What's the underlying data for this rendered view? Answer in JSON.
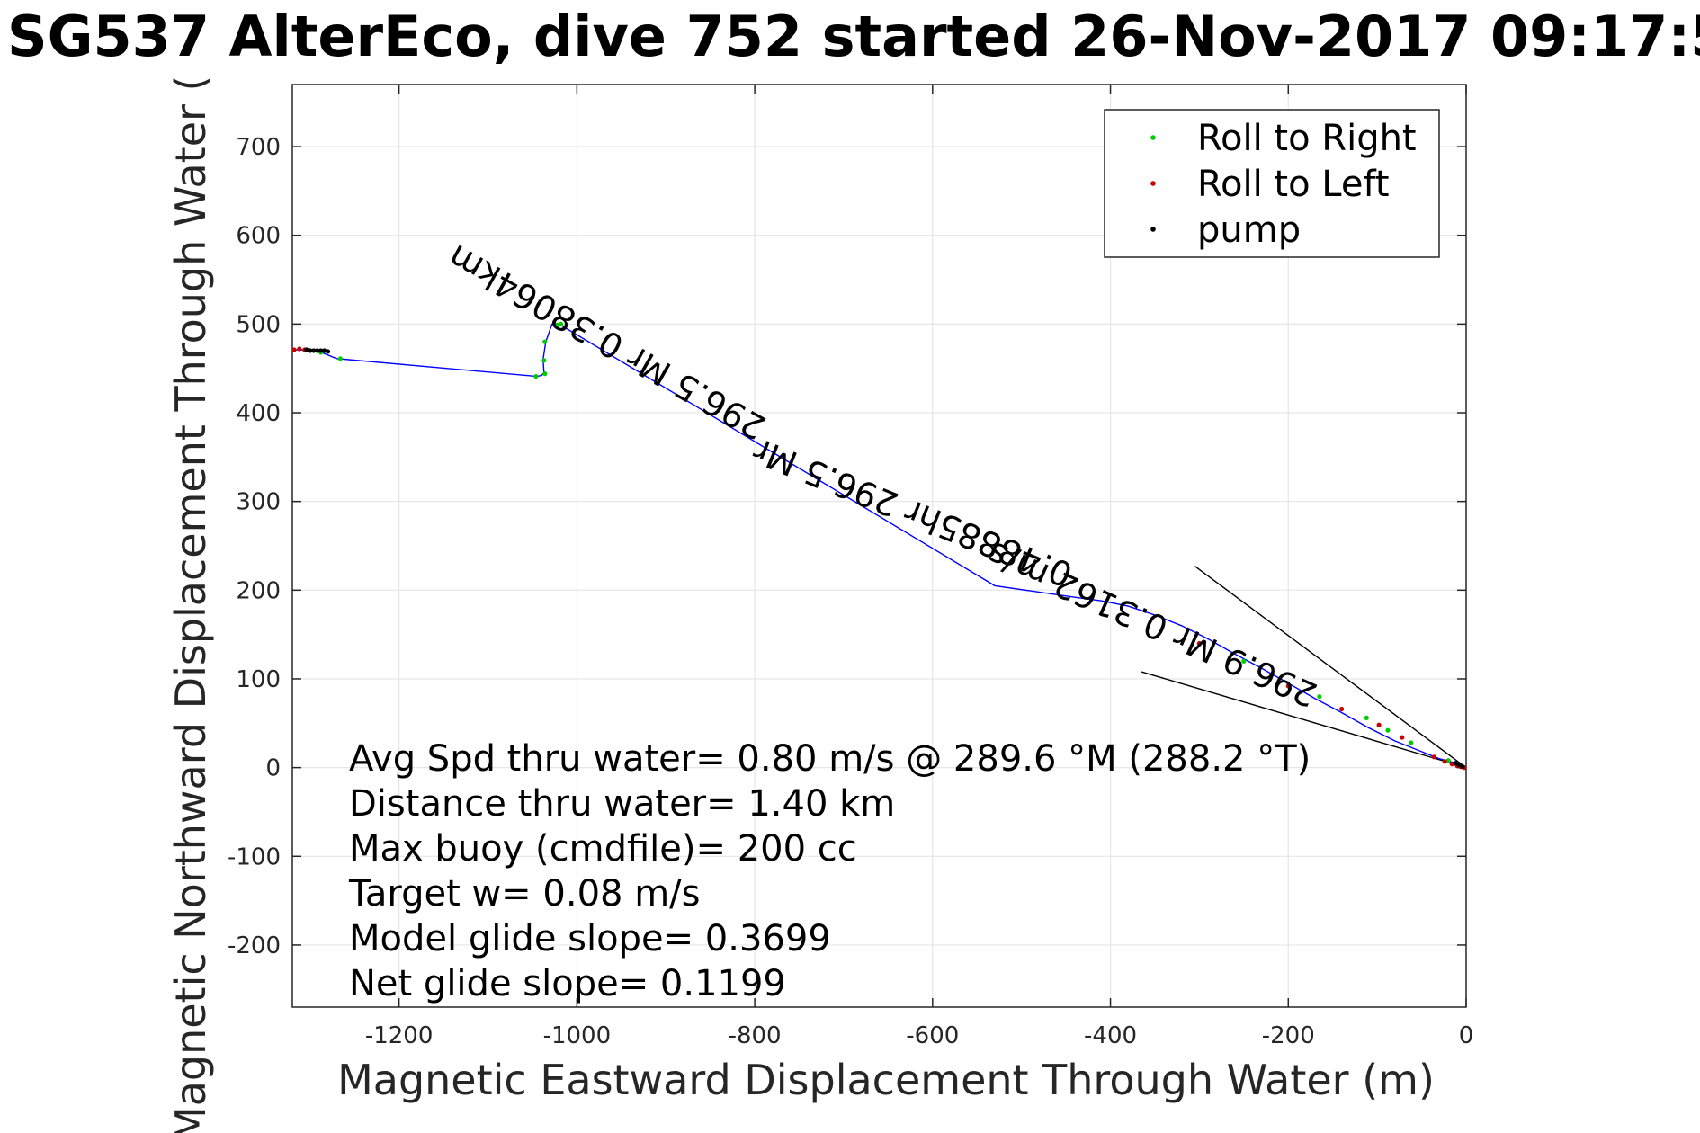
{
  "chart_data": {
    "type": "line",
    "title": "SG537 AlterEco, dive 752 started 26-Nov-2017 09:17:5",
    "xlabel": "Magnetic Eastward Displacement Through Water (m)",
    "ylabel": "Magnetic Northward Displacement Through Water (",
    "xlim": [
      -1320,
      0
    ],
    "ylim": [
      -270,
      770
    ],
    "xticks": [
      -1200,
      -1000,
      -800,
      -600,
      -400,
      -200,
      0
    ],
    "yticks": [
      -200,
      -100,
      0,
      100,
      200,
      300,
      400,
      500,
      600,
      700
    ],
    "grid": true,
    "legend": {
      "position": "top-right",
      "entries": [
        {
          "label": "Roll to Right",
          "color": "#00cc00"
        },
        {
          "label": "Roll to Left",
          "color": "#cc0000"
        },
        {
          "label": "pump",
          "color": "#000000"
        }
      ]
    },
    "track": {
      "color": "#0000ff",
      "x": [
        0,
        -5,
        -15,
        -30,
        -50,
        -80,
        -110,
        -140,
        -170,
        -200,
        -230,
        -260,
        -290,
        -320,
        -350,
        -380,
        -410,
        -440,
        -530,
        -1020,
        -1028,
        -1035,
        -1038,
        -1037,
        -1040,
        -1045,
        -1270,
        -1290,
        -1300,
        -1310,
        -1320
      ],
      "y": [
        0,
        3,
        6,
        10,
        18,
        30,
        45,
        62,
        78,
        95,
        112,
        128,
        145,
        160,
        172,
        182,
        188,
        192,
        205,
        500,
        500,
        480,
        460,
        445,
        442,
        441,
        461,
        469,
        470,
        471,
        471
      ]
    },
    "roll_right": {
      "x": [
        -1018,
        -1022,
        -1036,
        -1037,
        -1036,
        -1046,
        -1266,
        -1288,
        -1300,
        -62,
        -88,
        -112,
        -165,
        -250,
        -20
      ],
      "y": [
        500,
        499,
        480,
        459,
        444,
        441,
        461,
        468,
        470,
        28,
        42,
        56,
        80,
        120,
        8
      ]
    },
    "roll_left": {
      "x": [
        -1318,
        -1312,
        -1306,
        -2,
        -6,
        -10,
        -16,
        -24,
        -36,
        -72,
        -98,
        -140,
        -200,
        -300
      ],
      "y": [
        471,
        472,
        471,
        0,
        1,
        2,
        4,
        7,
        12,
        34,
        48,
        66,
        92,
        140
      ]
    },
    "pump": {
      "x": [
        -1280,
        -1284,
        -1288,
        -1292,
        -1296,
        -1300,
        -1304,
        -4,
        -8,
        -12
      ],
      "y": [
        469,
        470,
        470,
        470,
        470,
        470,
        471,
        1,
        3,
        5
      ]
    },
    "guide_lines": [
      {
        "x": [
          0,
          -305
        ],
        "y": [
          0,
          227
        ]
      },
      {
        "x": [
          0,
          -365
        ],
        "y": [
          0,
          108
        ]
      }
    ],
    "annotations": [
      {
        "text": "296.5 Mr 0.38064km",
        "x": -785,
        "y": 392,
        "angle": 29.5
      },
      {
        "text": "0.48885hr 296.5 Mr",
        "x": -440,
        "y": 228,
        "angle": 22
      },
      {
        "text": "296.9 Mr 0.3162 m/s",
        "x": -165,
        "y": 92,
        "angle": 24
      }
    ],
    "stats": [
      "Avg Spd thru water=  0.80 m/s @ 289.6 °M (288.2 °T)",
      "Distance thru water=  1.40 km",
      "Max buoy (cmdfile)= 200 cc",
      "Target w= 0.08 m/s",
      "Model glide slope= 0.3699",
      "Net glide slope= 0.1199"
    ]
  }
}
